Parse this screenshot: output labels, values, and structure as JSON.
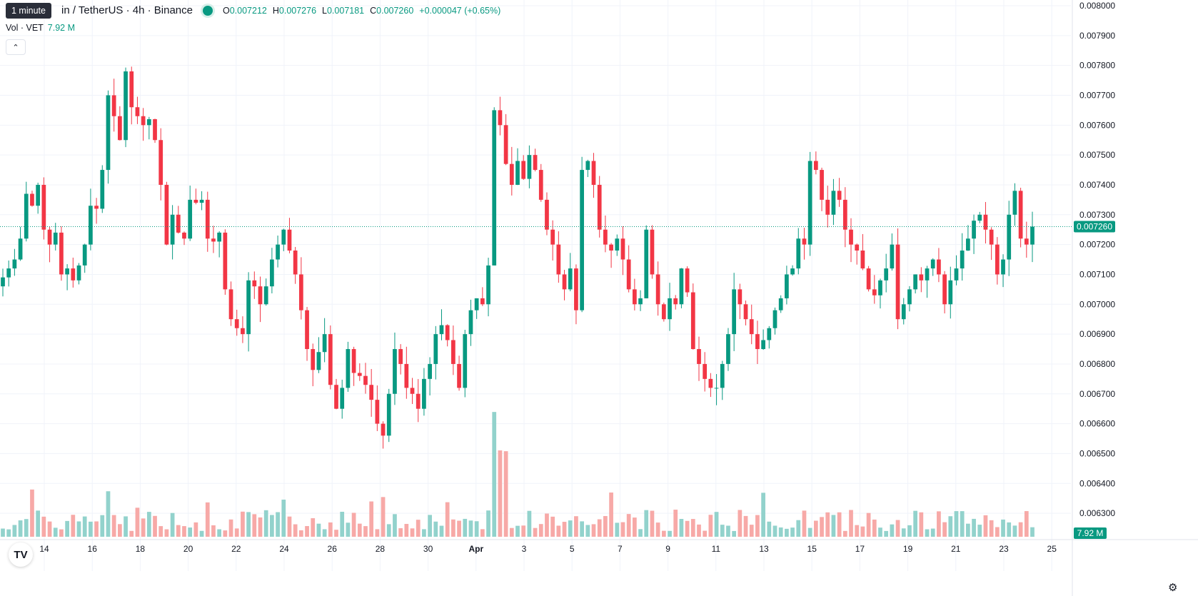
{
  "tooltip": "1 minute",
  "legend": {
    "symbol": "in / TetherUS · 4h · Binance",
    "o_key": "O",
    "o_val": "0.007212",
    "h_key": "H",
    "h_val": "0.007276",
    "l_key": "L",
    "l_val": "0.007181",
    "c_key": "C",
    "c_val": "0.007260",
    "change": "+0.000047 (+0.65%)"
  },
  "volume_row": {
    "label": "Vol · VET",
    "value": "7.92 M"
  },
  "colors": {
    "up": "#089981",
    "down": "#F23645",
    "up_vol": "#92D2CC",
    "down_vol": "#F7A9A7",
    "grid": "#F0F3FA",
    "axis_text": "#131722"
  },
  "price_label": "0.007260",
  "volume_label": "7.92 M",
  "icons": {
    "logo": "tradingview-logo-icon",
    "settings": "gear-icon",
    "collapse": "chevron-up-icon"
  },
  "chart_data": {
    "type": "candlestick",
    "y_ticks": [
      "0.008000",
      "0.007900",
      "0.007800",
      "0.007700",
      "0.007600",
      "0.007500",
      "0.007400",
      "0.007300",
      "0.007200",
      "0.007100",
      "0.007000",
      "0.006900",
      "0.006800",
      "0.006700",
      "0.006600",
      "0.006500",
      "0.006400",
      "0.006300"
    ],
    "ylim": [
      0.00625,
      0.008
    ],
    "x_ticks": [
      "14",
      "16",
      "18",
      "20",
      "22",
      "24",
      "26",
      "28",
      "30",
      "Apr",
      "3",
      "5",
      "7",
      "9",
      "11",
      "13",
      "15",
      "17",
      "19",
      "21",
      "23",
      "25"
    ],
    "current_price": 0.00726,
    "volume_last": "7.92 M",
    "close_series": [
      0.00709,
      0.00712,
      0.00715,
      0.00722,
      0.00737,
      0.00733,
      0.0074,
      0.00725,
      0.0072,
      0.00724,
      0.0071,
      0.00712,
      0.00708,
      0.00713,
      0.0072,
      0.00733,
      0.00732,
      0.00745,
      0.0077,
      0.00763,
      0.00755,
      0.00778,
      0.00766,
      0.00763,
      0.0076,
      0.00762,
      0.00755,
      0.0074,
      0.0072,
      0.0073,
      0.00724,
      0.00722,
      0.00735,
      0.00734,
      0.00735,
      0.00722,
      0.00721,
      0.00724,
      0.00705,
      0.00695,
      0.00692,
      0.0069,
      0.00708,
      0.00706,
      0.007,
      0.00706,
      0.00715,
      0.0072,
      0.00725,
      0.00718,
      0.0071,
      0.00698,
      0.00685,
      0.00678,
      0.00684,
      0.0069,
      0.00673,
      0.00665,
      0.00672,
      0.00685,
      0.00677,
      0.00676,
      0.00673,
      0.00668,
      0.0066,
      0.00656,
      0.0067,
      0.00685,
      0.0068,
      0.00672,
      0.0067,
      0.00665,
      0.00675,
      0.0068,
      0.0069,
      0.00693,
      0.00688,
      0.0068,
      0.00672,
      0.0069,
      0.00698,
      0.00702,
      0.007,
      0.00713,
      0.00765,
      0.0076,
      0.00747,
      0.0074,
      0.00748,
      0.00742,
      0.0075,
      0.00745,
      0.00735,
      0.00725,
      0.0072,
      0.0071,
      0.00705,
      0.00712,
      0.00698,
      0.00745,
      0.00748,
      0.0074,
      0.00725,
      0.0072,
      0.00718,
      0.00722,
      0.00715,
      0.00705,
      0.007,
      0.00702,
      0.00725,
      0.0071,
      0.007,
      0.00695,
      0.00702,
      0.007,
      0.00712,
      0.00704,
      0.00685,
      0.0068,
      0.00675,
      0.00672,
      0.00672,
      0.0068,
      0.0069,
      0.00705,
      0.007,
      0.00695,
      0.0069,
      0.00685,
      0.00688,
      0.00692,
      0.00698,
      0.00702,
      0.0071,
      0.00712,
      0.00722,
      0.0072,
      0.00748,
      0.00745,
      0.00735,
      0.0073,
      0.00738,
      0.00735,
      0.00725,
      0.0072,
      0.00718,
      0.00712,
      0.00705,
      0.00703,
      0.00708,
      0.00712,
      0.0072,
      0.00695,
      0.007,
      0.00705,
      0.0071,
      0.00708,
      0.00712,
      0.00715,
      0.0071,
      0.007,
      0.00708,
      0.00712,
      0.00718,
      0.00722,
      0.00728,
      0.0073,
      0.00725,
      0.0072,
      0.0071,
      0.00715,
      0.0073,
      0.00738,
      0.00722,
      0.0072,
      0.00726
    ]
  }
}
